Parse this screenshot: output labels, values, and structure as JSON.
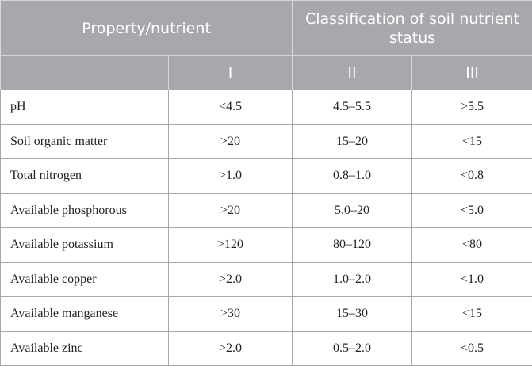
{
  "header": {
    "property": "Property/nutrient",
    "classification": "Classification of soil nutrient status",
    "classes": [
      "I",
      "II",
      "III"
    ]
  },
  "rows": [
    [
      "pH",
      "<4.5",
      "4.5–5.5",
      ">5.5"
    ],
    [
      "Soil organic matter",
      ">20",
      "15–20",
      "<15"
    ],
    [
      "Total nitrogen",
      ">1.0",
      "0.8–1.0",
      "<0.8"
    ],
    [
      "Available phosphorous",
      ">20",
      "5.0–20",
      "<5.0"
    ],
    [
      "Available potassium",
      ">120",
      "80–120",
      "<80"
    ],
    [
      "Available copper",
      ">2.0",
      "1.0–2.0",
      "<1.0"
    ],
    [
      "Available manganese",
      ">30",
      "15–30",
      "<15"
    ],
    [
      "Available zinc",
      ">2.0",
      "0.5–2.0",
      "<0.5"
    ]
  ]
}
